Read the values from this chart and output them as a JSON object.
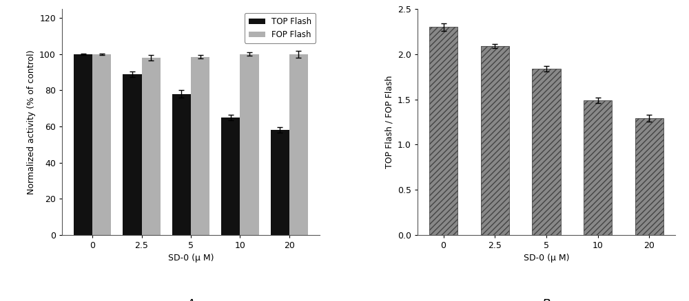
{
  "chart_A": {
    "categories": [
      "0",
      "2.5",
      "5",
      "10",
      "20"
    ],
    "top_flash": [
      100,
      89,
      78,
      65,
      58
    ],
    "fop_flash": [
      100,
      98,
      98.5,
      100,
      100
    ],
    "top_flash_err": [
      0.5,
      1.5,
      2.0,
      1.5,
      1.5
    ],
    "fop_flash_err": [
      0.5,
      1.5,
      1.0,
      1.0,
      2.0
    ],
    "top_flash_color": "#111111",
    "fop_flash_color": "#b0b0b0",
    "ylabel": "Normalized activity (% of control)",
    "xlabel": "SD-0 (μ M)",
    "ylim": [
      0,
      125
    ],
    "yticks": [
      0,
      20,
      40,
      60,
      80,
      100,
      120
    ],
    "legend_labels": [
      "TOP Flash",
      "FOP Flash"
    ],
    "label": "A"
  },
  "chart_B": {
    "categories": [
      "0",
      "2.5",
      "5",
      "10",
      "20"
    ],
    "values": [
      2.3,
      2.09,
      1.84,
      1.49,
      1.29
    ],
    "errors": [
      0.04,
      0.02,
      0.03,
      0.03,
      0.04
    ],
    "bar_color": "#888888",
    "hatch": "////",
    "ylabel": "TOP Flash / FOP Flash",
    "xlabel": "SD-0 (μ M)",
    "ylim": [
      0.0,
      2.5
    ],
    "yticks": [
      0.0,
      0.5,
      1.0,
      1.5,
      2.0,
      2.5
    ],
    "label": "B"
  },
  "background_color": "#ffffff",
  "fig_width": 10.0,
  "fig_height": 4.38
}
